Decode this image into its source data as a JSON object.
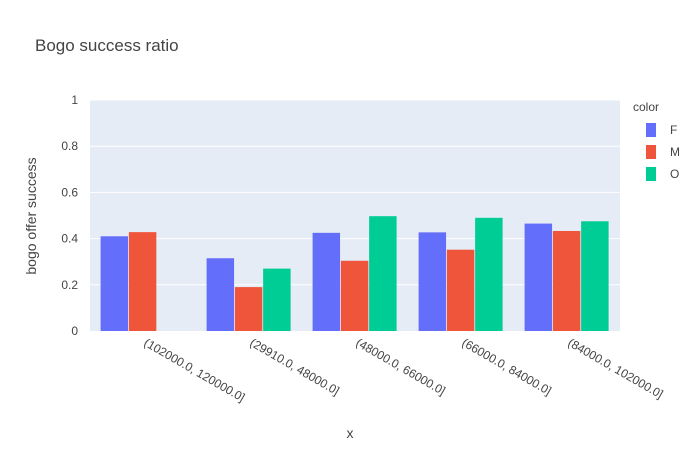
{
  "chart_data": {
    "type": "bar",
    "title": "Bogo success ratio",
    "xlabel": "x",
    "ylabel": "bogo offer success",
    "categories": [
      "(102000.0, 120000.0]",
      "(29910.0, 48000.0]",
      "(48000.0, 66000.0]",
      "(66000.0, 84000.0]",
      "(84000.0, 102000.0]"
    ],
    "series": [
      {
        "name": "F",
        "color": "#636efa",
        "values": [
          0.41,
          0.315,
          0.425,
          0.427,
          0.465
        ]
      },
      {
        "name": "M",
        "color": "#ef553b",
        "values": [
          0.428,
          0.19,
          0.304,
          0.352,
          0.433
        ]
      },
      {
        "name": "O",
        "color": "#00cc96",
        "values": [
          null,
          0.27,
          0.497,
          0.49,
          0.475
        ]
      }
    ],
    "ylim": [
      0,
      1
    ],
    "yticks": [
      0,
      0.2,
      0.4,
      0.6,
      0.8,
      1
    ],
    "ytick_labels": [
      "0",
      "0.2",
      "0.4",
      "0.6",
      "0.8",
      "1"
    ],
    "grid": true,
    "barmode": "group",
    "plot_background": "#e5ecf6",
    "legend": {
      "title": "color",
      "placement": "top-right, outside plot"
    }
  }
}
